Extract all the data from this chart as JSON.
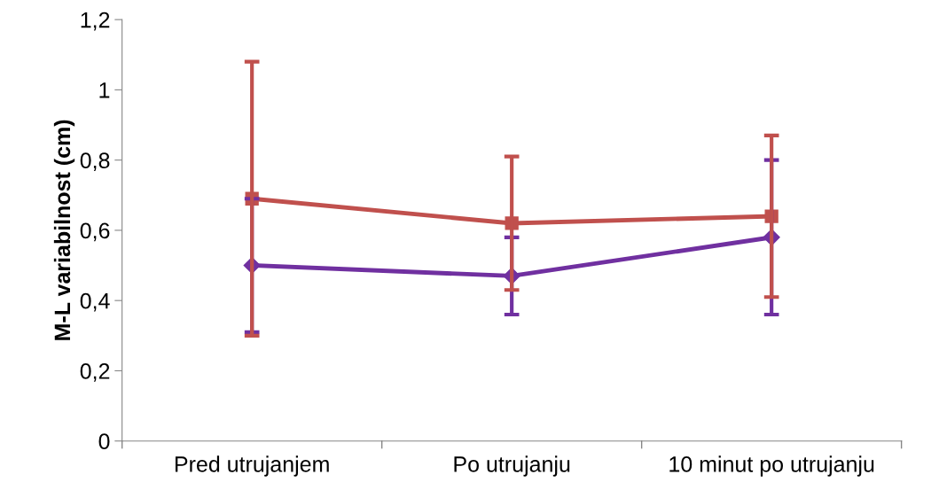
{
  "chart_data": {
    "type": "line",
    "ylabel": "M-L variabilnost (cm)",
    "categories": [
      "Pred utrujanjem",
      "Po utrujanju",
      "10 minut po utrujanju"
    ],
    "series": [
      {
        "color": "#7030a0",
        "marker": "diamond",
        "values": [
          0.5,
          0.47,
          0.58
        ],
        "errors": [
          0.19,
          0.11,
          0.22
        ]
      },
      {
        "color": "#c0504d",
        "marker": "square",
        "values": [
          0.69,
          0.62,
          0.64
        ],
        "errors": [
          0.39,
          0.19,
          0.23
        ]
      }
    ],
    "ylim": [
      0,
      1.2
    ],
    "yticks": [
      0,
      {
        "value": 0.2,
        "label": "0,2"
      },
      {
        "value": 0.4,
        "label": "0,4"
      },
      {
        "value": 0.6,
        "label": "0,6"
      },
      {
        "value": 0.8,
        "label": "0,8"
      },
      {
        "value": 1,
        "label": "1"
      },
      {
        "value": 1.2,
        "label": "1,2"
      }
    ],
    "grid": false,
    "line_style": "solid"
  }
}
